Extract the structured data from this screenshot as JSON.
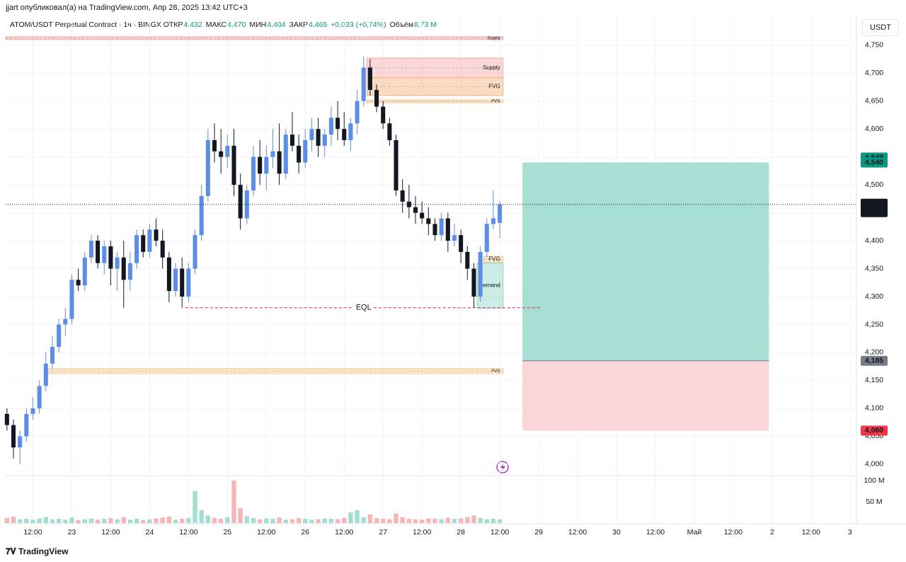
{
  "chart_data": {
    "type": "candlestick",
    "author_line": "jjart опубликовал(а) на TradingView.com, Апр 28, 2025 13:42 UTC+3",
    "symbol": "ATOM/USDT Perpetual Contract · 1ч · BINGX",
    "legend": [
      {
        "key": "ОТКР",
        "value": 4.432,
        "label": "4,432"
      },
      {
        "key": "МАКС",
        "value": 4.47,
        "label": "4,470"
      },
      {
        "key": "МИН",
        "value": 4.404,
        "label": "4,404"
      },
      {
        "key": "ЗАКР",
        "value": 4.465,
        "label": "4,465"
      },
      {
        "key": "",
        "value": 0.033,
        "label": "+0,033 (+0,74%)"
      },
      {
        "key": "Объём",
        "value": 8.73,
        "label": "8,73 M"
      }
    ],
    "currency": "USDT",
    "brand": "TradingView",
    "up_color": "#5c8ee6",
    "down_color": "#131722",
    "vol_up_color": "#a4ddd2",
    "vol_down_color": "#f7b6b5",
    "ylim": [
      3.982,
      4.803
    ],
    "yticks": [
      {
        "value": 4.0,
        "label": "4,000"
      },
      {
        "value": 4.05,
        "label": "4,050"
      },
      {
        "value": 4.1,
        "label": "4,100"
      },
      {
        "value": 4.15,
        "label": "4,150"
      },
      {
        "value": 4.2,
        "label": "4,200"
      },
      {
        "value": 4.25,
        "label": "4,250"
      },
      {
        "value": 4.3,
        "label": "4,300"
      },
      {
        "value": 4.35,
        "label": "4,350"
      },
      {
        "value": 4.4,
        "label": "4,400"
      },
      {
        "value": 4.45,
        "label": "4,450"
      },
      {
        "value": 4.5,
        "label": "4,500"
      },
      {
        "value": 4.55,
        "label": "4,550"
      },
      {
        "value": 4.6,
        "label": "4,600"
      },
      {
        "value": 4.65,
        "label": "4,650"
      },
      {
        "value": 4.7,
        "label": "4,700"
      },
      {
        "value": 4.75,
        "label": "4,750"
      }
    ],
    "vlim": [
      0,
      110
    ],
    "vticks": [
      {
        "value": 50,
        "label": "50 M"
      },
      {
        "value": 100,
        "label": "100 M"
      }
    ],
    "xlim": [
      -0.2,
      131
    ],
    "xticks": [
      {
        "value": 4,
        "label": "12:00"
      },
      {
        "value": 10,
        "label": "23"
      },
      {
        "value": 16,
        "label": "12:00"
      },
      {
        "value": 22,
        "label": "24"
      },
      {
        "value": 28,
        "label": "12:00"
      },
      {
        "value": 34,
        "label": "25"
      },
      {
        "value": 40,
        "label": "12:00"
      },
      {
        "value": 46,
        "label": "26"
      },
      {
        "value": 52,
        "label": "12:00"
      },
      {
        "value": 58,
        "label": "27"
      },
      {
        "value": 64,
        "label": "12:00"
      },
      {
        "value": 70,
        "label": "28"
      },
      {
        "value": 76,
        "label": "12:00"
      },
      {
        "value": 82,
        "label": "29"
      },
      {
        "value": 88,
        "label": "12:00"
      },
      {
        "value": 94,
        "label": "30"
      },
      {
        "value": 100,
        "label": "12:00"
      },
      {
        "value": 106,
        "label": "Май"
      },
      {
        "value": 112,
        "label": "12:00"
      },
      {
        "value": 118,
        "label": "2"
      },
      {
        "value": 124,
        "label": "12:00"
      },
      {
        "value": 130,
        "label": "3"
      }
    ],
    "ohlc": [
      [
        4.09,
        4.1,
        4.06,
        4.07
      ],
      [
        4.07,
        4.08,
        4.01,
        4.03
      ],
      [
        4.03,
        4.06,
        4.0,
        4.05
      ],
      [
        4.05,
        4.1,
        4.04,
        4.09
      ],
      [
        4.09,
        4.12,
        4.08,
        4.1
      ],
      [
        4.1,
        4.15,
        4.09,
        4.14
      ],
      [
        4.14,
        4.2,
        4.13,
        4.18
      ],
      [
        4.18,
        4.23,
        4.17,
        4.21
      ],
      [
        4.21,
        4.26,
        4.2,
        4.25
      ],
      [
        4.25,
        4.28,
        4.23,
        4.26
      ],
      [
        4.26,
        4.34,
        4.25,
        4.33
      ],
      [
        4.33,
        4.35,
        4.31,
        4.32
      ],
      [
        4.32,
        4.38,
        4.31,
        4.37
      ],
      [
        4.37,
        4.41,
        4.36,
        4.4
      ],
      [
        4.4,
        4.41,
        4.35,
        4.36
      ],
      [
        4.36,
        4.4,
        4.34,
        4.39
      ],
      [
        4.39,
        4.4,
        4.32,
        4.35
      ],
      [
        4.35,
        4.38,
        4.31,
        4.37
      ],
      [
        4.37,
        4.4,
        4.28,
        4.33
      ],
      [
        4.33,
        4.38,
        4.31,
        4.36
      ],
      [
        4.36,
        4.42,
        4.35,
        4.41
      ],
      [
        4.41,
        4.42,
        4.37,
        4.38
      ],
      [
        4.38,
        4.43,
        4.37,
        4.42
      ],
      [
        4.42,
        4.44,
        4.39,
        4.4
      ],
      [
        4.4,
        4.42,
        4.35,
        4.37
      ],
      [
        4.37,
        4.38,
        4.29,
        4.31
      ],
      [
        4.31,
        4.36,
        4.3,
        4.35
      ],
      [
        4.35,
        4.37,
        4.28,
        4.3
      ],
      [
        4.3,
        4.36,
        4.29,
        4.35
      ],
      [
        4.35,
        4.42,
        4.34,
        4.41
      ],
      [
        4.41,
        4.5,
        4.4,
        4.48
      ],
      [
        4.48,
        4.6,
        4.47,
        4.58
      ],
      [
        4.58,
        4.61,
        4.54,
        4.56
      ],
      [
        4.56,
        4.6,
        4.52,
        4.55
      ],
      [
        4.55,
        4.59,
        4.53,
        4.57
      ],
      [
        4.57,
        4.6,
        4.48,
        4.5
      ],
      [
        4.5,
        4.52,
        4.42,
        4.44
      ],
      [
        4.44,
        4.5,
        4.43,
        4.49
      ],
      [
        4.49,
        4.57,
        4.48,
        4.55
      ],
      [
        4.55,
        4.58,
        4.5,
        4.52
      ],
      [
        4.52,
        4.57,
        4.49,
        4.55
      ],
      [
        4.55,
        4.6,
        4.53,
        4.56
      ],
      [
        4.56,
        4.61,
        4.5,
        4.52
      ],
      [
        4.52,
        4.6,
        4.51,
        4.59
      ],
      [
        4.59,
        4.63,
        4.56,
        4.57
      ],
      [
        4.57,
        4.59,
        4.52,
        4.54
      ],
      [
        4.54,
        4.6,
        4.53,
        4.58
      ],
      [
        4.58,
        4.62,
        4.56,
        4.6
      ],
      [
        4.6,
        4.62,
        4.55,
        4.57
      ],
      [
        4.57,
        4.6,
        4.55,
        4.59
      ],
      [
        4.59,
        4.64,
        4.57,
        4.62
      ],
      [
        4.62,
        4.65,
        4.58,
        4.6
      ],
      [
        4.6,
        4.63,
        4.57,
        4.58
      ],
      [
        4.58,
        4.62,
        4.56,
        4.61
      ],
      [
        4.61,
        4.67,
        4.59,
        4.65
      ],
      [
        4.65,
        4.73,
        4.64,
        4.71
      ],
      [
        4.71,
        4.725,
        4.66,
        4.67
      ],
      [
        4.67,
        4.68,
        4.63,
        4.64
      ],
      [
        4.64,
        4.65,
        4.6,
        4.61
      ],
      [
        4.61,
        4.62,
        4.57,
        4.58
      ],
      [
        4.58,
        4.59,
        4.48,
        4.49
      ],
      [
        4.49,
        4.51,
        4.45,
        4.47
      ],
      [
        4.47,
        4.5,
        4.44,
        4.46
      ],
      [
        4.46,
        4.48,
        4.43,
        4.45
      ],
      [
        4.45,
        4.47,
        4.43,
        4.44
      ],
      [
        4.44,
        4.46,
        4.41,
        4.43
      ],
      [
        4.43,
        4.44,
        4.4,
        4.41
      ],
      [
        4.41,
        4.45,
        4.4,
        4.44
      ],
      [
        4.44,
        4.45,
        4.38,
        4.4
      ],
      [
        4.4,
        4.43,
        4.39,
        4.41
      ],
      [
        4.41,
        4.42,
        4.36,
        4.38
      ],
      [
        4.38,
        4.39,
        4.33,
        4.35
      ],
      [
        4.35,
        4.36,
        4.28,
        4.3
      ],
      [
        4.3,
        4.39,
        4.29,
        4.38
      ],
      [
        4.38,
        4.44,
        4.37,
        4.43
      ],
      [
        4.43,
        4.49,
        4.42,
        4.44
      ],
      [
        4.432,
        4.47,
        4.404,
        4.465
      ]
    ],
    "volume": [
      12,
      15,
      9,
      10,
      8,
      11,
      14,
      9,
      10,
      8,
      13,
      7,
      9,
      11,
      8,
      10,
      12,
      9,
      14,
      8,
      10,
      7,
      9,
      11,
      13,
      15,
      8,
      10,
      12,
      75,
      30,
      18,
      12,
      10,
      14,
      100,
      35,
      16,
      12,
      9,
      11,
      10,
      13,
      8,
      9,
      12,
      10,
      8,
      9,
      11,
      10,
      9,
      12,
      25,
      30,
      14,
      20,
      12,
      10,
      9,
      22,
      14,
      10,
      9,
      8,
      11,
      10,
      9,
      12,
      10,
      11,
      14,
      18,
      12,
      9,
      10,
      8.73
    ],
    "zones": [
      {
        "label": "Supply",
        "top": 4.765,
        "bottom": 4.76,
        "from": -0.2,
        "to": 76.5,
        "color": "#f7a6a6"
      },
      {
        "label": "Supply",
        "top": 4.727,
        "bottom": 4.692,
        "from": 55.5,
        "to": 76.5,
        "color": "#f7a6a6"
      },
      {
        "label": "FVG",
        "top": 4.692,
        "bottom": 4.66,
        "from": 55.5,
        "to": 76.5,
        "color": "#f7b27a"
      },
      {
        "label": "FVG",
        "top": 4.652,
        "bottom": 4.647,
        "from": 55.5,
        "to": 76.5,
        "color": "#f7c98f"
      },
      {
        "label": "FVG",
        "top": 4.372,
        "bottom": 4.361,
        "from": 73.5,
        "to": 76.5,
        "color": "#f7c98f"
      },
      {
        "label": "Demand",
        "top": 4.36,
        "bottom": 4.279,
        "from": 72.5,
        "to": 76.5,
        "color": "#8fd6c8"
      },
      {
        "label": "FVG",
        "top": 4.171,
        "bottom": 4.162,
        "from": 6.2,
        "to": 76.5,
        "color": "#f7c98f"
      }
    ],
    "eql": {
      "label": "EQL",
      "value": 4.28,
      "from": 27.5,
      "to": 82.5,
      "color": "#e91e63"
    },
    "position": {
      "target": 4.54,
      "entry": 4.185,
      "stop": 4.06,
      "from": 79.5,
      "to": 117.5,
      "profit_color": "#a6ded3",
      "loss_color": "#fbd6d8"
    },
    "last_price": {
      "value": 4.465,
      "label": "4,465",
      "countdown": "17:05"
    },
    "price_labels": [
      {
        "value": 4.549,
        "label": "4,549",
        "color": "#089981"
      },
      {
        "value": 4.54,
        "label": "4,540",
        "color": "#089981"
      },
      {
        "value": 4.185,
        "label": "4,185",
        "color": "#787b86"
      },
      {
        "value": 4.06,
        "label": "4,060",
        "color": "#f23645"
      }
    ]
  }
}
